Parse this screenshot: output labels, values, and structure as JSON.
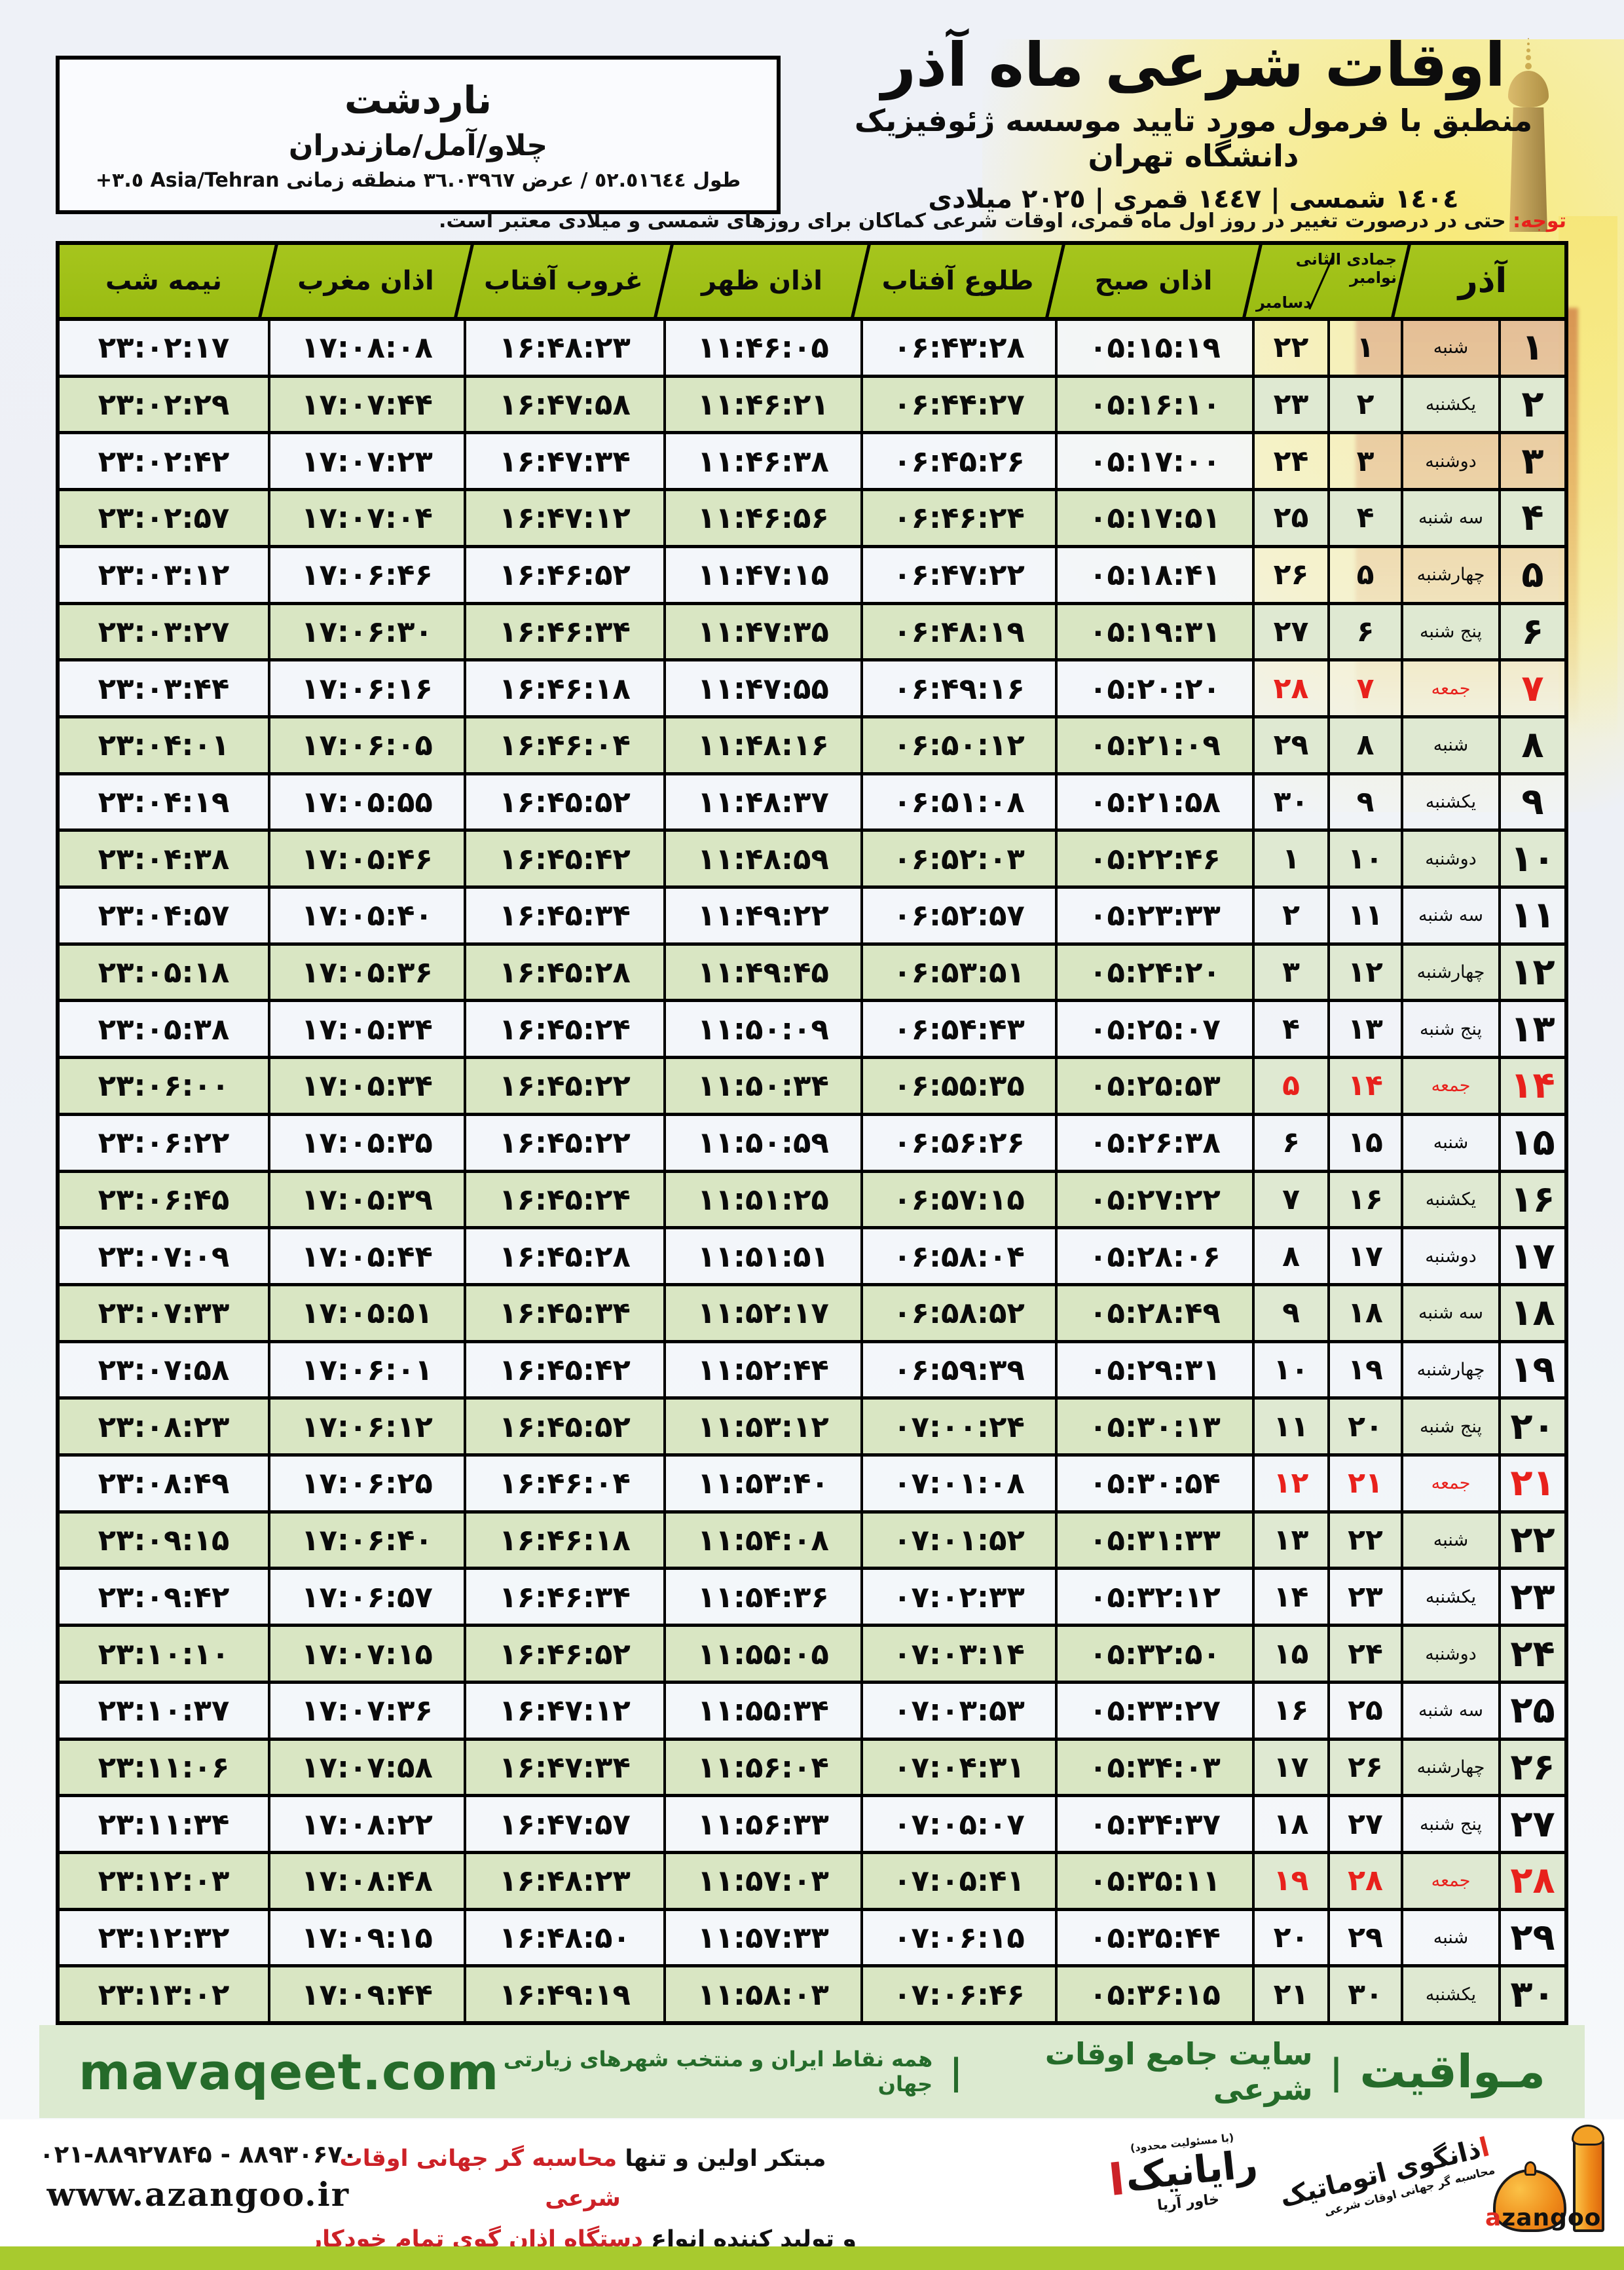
{
  "header": {
    "title": "اوقات شرعی ماه آذر",
    "subtitle": "منطبق با فرمول مورد تایید موسسه ژئوفیزیک دانشگاه تهران",
    "years": "١٤٠٤ شمسی | ١٤٤٧ قمری | ٢٠٢٥ میلادی"
  },
  "location": {
    "name": "ناردشت",
    "region": "چلاو/آمل/مازندران",
    "coords_fa": "طول ٥٢.٥١٦٤٤ / عرض ٣٦.٠٣٩٦٧ منطقه زمانی",
    "coords_tz": "+٣.٥ Asia/Tehran"
  },
  "note": {
    "label": "توجه:",
    "text": " حتی در درصورت تغییر در روز اول ماه قمری، اوقات شرعی کماکان برای روزهای شمسی و میلادی معتبر است."
  },
  "table": {
    "headers": {
      "midnight": "نیمه شب",
      "maghrib": "اذان مغرب",
      "sunset": "غروب آفتاب",
      "dhuhr": "اذان ظهر",
      "sunrise": "طلوع آفتاب",
      "fajr": "اذان صبح",
      "dual_top": "جمادی الثانی نوامبر",
      "dual_bottom": "دسامبر",
      "month": "آذر"
    },
    "rows": [
      {
        "day": "۱",
        "weekday": "شنبه",
        "lunar": "۱",
        "greg": "۲۲",
        "fajr": "۰۵:۱۵:۱۹",
        "sunrise": "۰۶:۴۳:۲۸",
        "dhuhr": "۱۱:۴۶:۰۵",
        "sunset": "۱۶:۴۸:۲۳",
        "maghrib": "۱۷:۰۸:۰۸",
        "midnight": "۲۳:۰۲:۱۷",
        "friday": false
      },
      {
        "day": "۲",
        "weekday": "یکشنبه",
        "lunar": "۲",
        "greg": "۲۳",
        "fajr": "۰۵:۱۶:۱۰",
        "sunrise": "۰۶:۴۴:۲۷",
        "dhuhr": "۱۱:۴۶:۲۱",
        "sunset": "۱۶:۴۷:۵۸",
        "maghrib": "۱۷:۰۷:۴۴",
        "midnight": "۲۳:۰۲:۲۹",
        "friday": false
      },
      {
        "day": "۳",
        "weekday": "دوشنبه",
        "lunar": "۳",
        "greg": "۲۴",
        "fajr": "۰۵:۱۷:۰۰",
        "sunrise": "۰۶:۴۵:۲۶",
        "dhuhr": "۱۱:۴۶:۳۸",
        "sunset": "۱۶:۴۷:۳۴",
        "maghrib": "۱۷:۰۷:۲۳",
        "midnight": "۲۳:۰۲:۴۲",
        "friday": false
      },
      {
        "day": "۴",
        "weekday": "سه شنبه",
        "lunar": "۴",
        "greg": "۲۵",
        "fajr": "۰۵:۱۷:۵۱",
        "sunrise": "۰۶:۴۶:۲۴",
        "dhuhr": "۱۱:۴۶:۵۶",
        "sunset": "۱۶:۴۷:۱۲",
        "maghrib": "۱۷:۰۷:۰۴",
        "midnight": "۲۳:۰۲:۵۷",
        "friday": false
      },
      {
        "day": "۵",
        "weekday": "چهارشنبه",
        "lunar": "۵",
        "greg": "۲۶",
        "fajr": "۰۵:۱۸:۴۱",
        "sunrise": "۰۶:۴۷:۲۲",
        "dhuhr": "۱۱:۴۷:۱۵",
        "sunset": "۱۶:۴۶:۵۲",
        "maghrib": "۱۷:۰۶:۴۶",
        "midnight": "۲۳:۰۳:۱۲",
        "friday": false
      },
      {
        "day": "۶",
        "weekday": "پنج شنبه",
        "lunar": "۶",
        "greg": "۲۷",
        "fajr": "۰۵:۱۹:۳۱",
        "sunrise": "۰۶:۴۸:۱۹",
        "dhuhr": "۱۱:۴۷:۳۵",
        "sunset": "۱۶:۴۶:۳۴",
        "maghrib": "۱۷:۰۶:۳۰",
        "midnight": "۲۳:۰۳:۲۷",
        "friday": false
      },
      {
        "day": "۷",
        "weekday": "جمعه",
        "lunar": "۷",
        "greg": "۲۸",
        "fajr": "۰۵:۲۰:۲۰",
        "sunrise": "۰۶:۴۹:۱۶",
        "dhuhr": "۱۱:۴۷:۵۵",
        "sunset": "۱۶:۴۶:۱۸",
        "maghrib": "۱۷:۰۶:۱۶",
        "midnight": "۲۳:۰۳:۴۴",
        "friday": true
      },
      {
        "day": "۸",
        "weekday": "شنبه",
        "lunar": "۸",
        "greg": "۲۹",
        "fajr": "۰۵:۲۱:۰۹",
        "sunrise": "۰۶:۵۰:۱۲",
        "dhuhr": "۱۱:۴۸:۱۶",
        "sunset": "۱۶:۴۶:۰۴",
        "maghrib": "۱۷:۰۶:۰۵",
        "midnight": "۲۳:۰۴:۰۱",
        "friday": false
      },
      {
        "day": "۹",
        "weekday": "یکشنبه",
        "lunar": "۹",
        "greg": "۳۰",
        "fajr": "۰۵:۲۱:۵۸",
        "sunrise": "۰۶:۵۱:۰۸",
        "dhuhr": "۱۱:۴۸:۳۷",
        "sunset": "۱۶:۴۵:۵۲",
        "maghrib": "۱۷:۰۵:۵۵",
        "midnight": "۲۳:۰۴:۱۹",
        "friday": false
      },
      {
        "day": "۱۰",
        "weekday": "دوشنبه",
        "lunar": "۱۰",
        "greg": "۱",
        "fajr": "۰۵:۲۲:۴۶",
        "sunrise": "۰۶:۵۲:۰۳",
        "dhuhr": "۱۱:۴۸:۵۹",
        "sunset": "۱۶:۴۵:۴۲",
        "maghrib": "۱۷:۰۵:۴۶",
        "midnight": "۲۳:۰۴:۳۸",
        "friday": false
      },
      {
        "day": "۱۱",
        "weekday": "سه شنبه",
        "lunar": "۱۱",
        "greg": "۲",
        "fajr": "۰۵:۲۳:۳۳",
        "sunrise": "۰۶:۵۲:۵۷",
        "dhuhr": "۱۱:۴۹:۲۲",
        "sunset": "۱۶:۴۵:۳۴",
        "maghrib": "۱۷:۰۵:۴۰",
        "midnight": "۲۳:۰۴:۵۷",
        "friday": false
      },
      {
        "day": "۱۲",
        "weekday": "چهارشنبه",
        "lunar": "۱۲",
        "greg": "۳",
        "fajr": "۰۵:۲۴:۲۰",
        "sunrise": "۰۶:۵۳:۵۱",
        "dhuhr": "۱۱:۴۹:۴۵",
        "sunset": "۱۶:۴۵:۲۸",
        "maghrib": "۱۷:۰۵:۳۶",
        "midnight": "۲۳:۰۵:۱۸",
        "friday": false
      },
      {
        "day": "۱۳",
        "weekday": "پنج شنبه",
        "lunar": "۱۳",
        "greg": "۴",
        "fajr": "۰۵:۲۵:۰۷",
        "sunrise": "۰۶:۵۴:۴۳",
        "dhuhr": "۱۱:۵۰:۰۹",
        "sunset": "۱۶:۴۵:۲۴",
        "maghrib": "۱۷:۰۵:۳۴",
        "midnight": "۲۳:۰۵:۳۸",
        "friday": false
      },
      {
        "day": "۱۴",
        "weekday": "جمعه",
        "lunar": "۱۴",
        "greg": "۵",
        "fajr": "۰۵:۲۵:۵۳",
        "sunrise": "۰۶:۵۵:۳۵",
        "dhuhr": "۱۱:۵۰:۳۴",
        "sunset": "۱۶:۴۵:۲۲",
        "maghrib": "۱۷:۰۵:۳۴",
        "midnight": "۲۳:۰۶:۰۰",
        "friday": true
      },
      {
        "day": "۱۵",
        "weekday": "شنبه",
        "lunar": "۱۵",
        "greg": "۶",
        "fajr": "۰۵:۲۶:۳۸",
        "sunrise": "۰۶:۵۶:۲۶",
        "dhuhr": "۱۱:۵۰:۵۹",
        "sunset": "۱۶:۴۵:۲۲",
        "maghrib": "۱۷:۰۵:۳۵",
        "midnight": "۲۳:۰۶:۲۲",
        "friday": false
      },
      {
        "day": "۱۶",
        "weekday": "یکشنبه",
        "lunar": "۱۶",
        "greg": "۷",
        "fajr": "۰۵:۲۷:۲۲",
        "sunrise": "۰۶:۵۷:۱۵",
        "dhuhr": "۱۱:۵۱:۲۵",
        "sunset": "۱۶:۴۵:۲۴",
        "maghrib": "۱۷:۰۵:۳۹",
        "midnight": "۲۳:۰۶:۴۵",
        "friday": false
      },
      {
        "day": "۱۷",
        "weekday": "دوشنبه",
        "lunar": "۱۷",
        "greg": "۸",
        "fajr": "۰۵:۲۸:۰۶",
        "sunrise": "۰۶:۵۸:۰۴",
        "dhuhr": "۱۱:۵۱:۵۱",
        "sunset": "۱۶:۴۵:۲۸",
        "maghrib": "۱۷:۰۵:۴۴",
        "midnight": "۲۳:۰۷:۰۹",
        "friday": false
      },
      {
        "day": "۱۸",
        "weekday": "سه شنبه",
        "lunar": "۱۸",
        "greg": "۹",
        "fajr": "۰۵:۲۸:۴۹",
        "sunrise": "۰۶:۵۸:۵۲",
        "dhuhr": "۱۱:۵۲:۱۷",
        "sunset": "۱۶:۴۵:۳۴",
        "maghrib": "۱۷:۰۵:۵۱",
        "midnight": "۲۳:۰۷:۳۳",
        "friday": false
      },
      {
        "day": "۱۹",
        "weekday": "چهارشنبه",
        "lunar": "۱۹",
        "greg": "۱۰",
        "fajr": "۰۵:۲۹:۳۱",
        "sunrise": "۰۶:۵۹:۳۹",
        "dhuhr": "۱۱:۵۲:۴۴",
        "sunset": "۱۶:۴۵:۴۲",
        "maghrib": "۱۷:۰۶:۰۱",
        "midnight": "۲۳:۰۷:۵۸",
        "friday": false
      },
      {
        "day": "۲۰",
        "weekday": "پنج شنبه",
        "lunar": "۲۰",
        "greg": "۱۱",
        "fajr": "۰۵:۳۰:۱۳",
        "sunrise": "۰۷:۰۰:۲۴",
        "dhuhr": "۱۱:۵۳:۱۲",
        "sunset": "۱۶:۴۵:۵۲",
        "maghrib": "۱۷:۰۶:۱۲",
        "midnight": "۲۳:۰۸:۲۳",
        "friday": false
      },
      {
        "day": "۲۱",
        "weekday": "جمعه",
        "lunar": "۲۱",
        "greg": "۱۲",
        "fajr": "۰۵:۳۰:۵۴",
        "sunrise": "۰۷:۰۱:۰۸",
        "dhuhr": "۱۱:۵۳:۴۰",
        "sunset": "۱۶:۴۶:۰۴",
        "maghrib": "۱۷:۰۶:۲۵",
        "midnight": "۲۳:۰۸:۴۹",
        "friday": true
      },
      {
        "day": "۲۲",
        "weekday": "شنبه",
        "lunar": "۲۲",
        "greg": "۱۳",
        "fajr": "۰۵:۳۱:۳۳",
        "sunrise": "۰۷:۰۱:۵۲",
        "dhuhr": "۱۱:۵۴:۰۸",
        "sunset": "۱۶:۴۶:۱۸",
        "maghrib": "۱۷:۰۶:۴۰",
        "midnight": "۲۳:۰۹:۱۵",
        "friday": false
      },
      {
        "day": "۲۳",
        "weekday": "یکشنبه",
        "lunar": "۲۳",
        "greg": "۱۴",
        "fajr": "۰۵:۳۲:۱۲",
        "sunrise": "۰۷:۰۲:۳۳",
        "dhuhr": "۱۱:۵۴:۳۶",
        "sunset": "۱۶:۴۶:۳۴",
        "maghrib": "۱۷:۰۶:۵۷",
        "midnight": "۲۳:۰۹:۴۲",
        "friday": false
      },
      {
        "day": "۲۴",
        "weekday": "دوشنبه",
        "lunar": "۲۴",
        "greg": "۱۵",
        "fajr": "۰۵:۳۲:۵۰",
        "sunrise": "۰۷:۰۳:۱۴",
        "dhuhr": "۱۱:۵۵:۰۵",
        "sunset": "۱۶:۴۶:۵۲",
        "maghrib": "۱۷:۰۷:۱۵",
        "midnight": "۲۳:۱۰:۱۰",
        "friday": false
      },
      {
        "day": "۲۵",
        "weekday": "سه شنبه",
        "lunar": "۲۵",
        "greg": "۱۶",
        "fajr": "۰۵:۳۳:۲۷",
        "sunrise": "۰۷:۰۳:۵۳",
        "dhuhr": "۱۱:۵۵:۳۴",
        "sunset": "۱۶:۴۷:۱۲",
        "maghrib": "۱۷:۰۷:۳۶",
        "midnight": "۲۳:۱۰:۳۷",
        "friday": false
      },
      {
        "day": "۲۶",
        "weekday": "چهارشنبه",
        "lunar": "۲۶",
        "greg": "۱۷",
        "fajr": "۰۵:۳۴:۰۳",
        "sunrise": "۰۷:۰۴:۳۱",
        "dhuhr": "۱۱:۵۶:۰۴",
        "sunset": "۱۶:۴۷:۳۴",
        "maghrib": "۱۷:۰۷:۵۸",
        "midnight": "۲۳:۱۱:۰۶",
        "friday": false
      },
      {
        "day": "۲۷",
        "weekday": "پنج شنبه",
        "lunar": "۲۷",
        "greg": "۱۸",
        "fajr": "۰۵:۳۴:۳۷",
        "sunrise": "۰۷:۰۵:۰۷",
        "dhuhr": "۱۱:۵۶:۳۳",
        "sunset": "۱۶:۴۷:۵۷",
        "maghrib": "۱۷:۰۸:۲۲",
        "midnight": "۲۳:۱۱:۳۴",
        "friday": false
      },
      {
        "day": "۲۸",
        "weekday": "جمعه",
        "lunar": "۲۸",
        "greg": "۱۹",
        "fajr": "۰۵:۳۵:۱۱",
        "sunrise": "۰۷:۰۵:۴۱",
        "dhuhr": "۱۱:۵۷:۰۳",
        "sunset": "۱۶:۴۸:۲۳",
        "maghrib": "۱۷:۰۸:۴۸",
        "midnight": "۲۳:۱۲:۰۳",
        "friday": true
      },
      {
        "day": "۲۹",
        "weekday": "شنبه",
        "lunar": "۲۹",
        "greg": "۲۰",
        "fajr": "۰۵:۳۵:۴۴",
        "sunrise": "۰۷:۰۶:۱۵",
        "dhuhr": "۱۱:۵۷:۳۳",
        "sunset": "۱۶:۴۸:۵۰",
        "maghrib": "۱۷:۰۹:۱۵",
        "midnight": "۲۳:۱۲:۳۲",
        "friday": false
      },
      {
        "day": "۳۰",
        "weekday": "یکشنبه",
        "lunar": "۳۰",
        "greg": "۲۱",
        "fajr": "۰۵:۳۶:۱۵",
        "sunrise": "۰۷:۰۶:۴۶",
        "dhuhr": "۱۱:۵۸:۰۳",
        "sunset": "۱۶:۴۹:۱۹",
        "maghrib": "۱۷:۰۹:۴۴",
        "midnight": "۲۳:۱۳:۰۲",
        "friday": false
      }
    ]
  },
  "mavaqeet_band": {
    "brand_fa": "مـواقیت",
    "sep": "|",
    "tagline1": "سایت جامع اوقات شرعی",
    "tagline2": "همه نقاط ایران و منتخب شهرهای زیارتی جهان",
    "brand_en": "mavaqeet.com"
  },
  "footer": {
    "phones": "۰۲۱-۸۸۹۲۷۸۴۵ - ۸۸۹۳۰۶۷۰",
    "website": "www.azangoo.ir",
    "line1_black": "مبتکر اولین و تنها ",
    "line1_red": "محاسبه گر جهانی اوقات شرعی",
    "line2_black": "و تولید کننده انواع ",
    "line2_red": "دستگاه اذان گوی تمام خودکار ماهواره ای",
    "rayanik_small": "(با مسئولیت محدود)",
    "rayanik_main": "رایانیک",
    "rayanik_sub": "خاور آریا",
    "azangoo_fa_first": "ا",
    "azangoo_fa_rest": "ذانگوی اتوماتیک",
    "azangoo_fa_sub": "محاسبه گر جهانی اوقات شرعی",
    "azangoo_en_first": "a",
    "azangoo_en_rest": "zangoo"
  },
  "colors": {
    "friday_red": "#e8211c",
    "header_green": "#a6c51d",
    "row_green": "#d9e6c3",
    "band_bg": "#dcead0",
    "brand_green": "#256b2a",
    "footer_red": "#cc2127",
    "lime": "#a8ca2e"
  }
}
